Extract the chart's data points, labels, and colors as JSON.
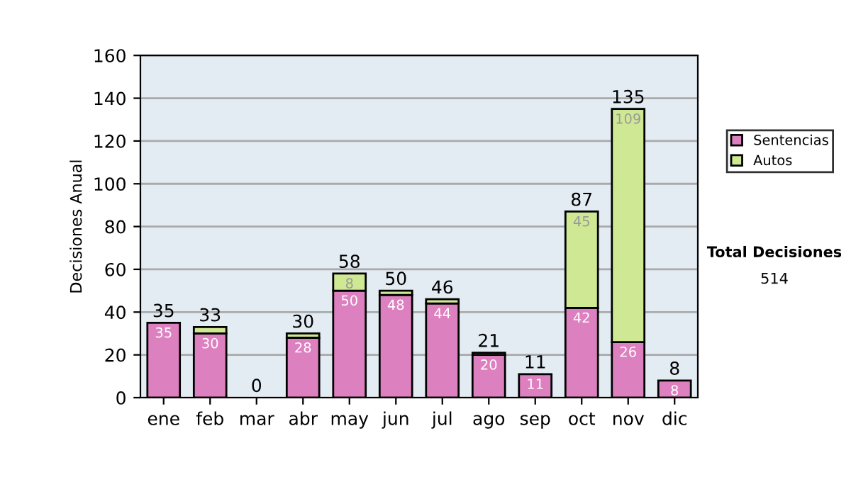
{
  "chart_data": {
    "type": "bar",
    "stacked": true,
    "categories": [
      "ene",
      "feb",
      "mar",
      "abr",
      "may",
      "jun",
      "jul",
      "ago",
      "sep",
      "oct",
      "nov",
      "dic"
    ],
    "ylabel": "Decisiones Anual",
    "series": [
      {
        "name": "Sentencias",
        "color": "#dd80bf",
        "values": [
          35,
          30,
          0,
          28,
          50,
          48,
          44,
          20,
          11,
          42,
          26,
          8
        ],
        "value_labels": [
          "35",
          "30",
          null,
          "28",
          "50",
          "48",
          "44",
          "20",
          "11",
          "42",
          "26",
          "8"
        ]
      },
      {
        "name": "Autos",
        "color": "#cfe893",
        "values": [
          0,
          3,
          0,
          2,
          8,
          2,
          2,
          1,
          0,
          45,
          109,
          0
        ],
        "value_labels": [
          null,
          null,
          null,
          null,
          "8",
          null,
          null,
          null,
          null,
          "45",
          "109",
          null
        ]
      }
    ],
    "totals": [
      "35",
      "33",
      "0",
      "30",
      "58",
      "50",
      "46",
      "21",
      "11",
      "87",
      "135",
      "8"
    ],
    "ylim": [
      0,
      160
    ],
    "yticks": [
      0,
      20,
      40,
      60,
      80,
      100,
      120,
      140,
      160
    ],
    "grid": "y",
    "legend": "right",
    "annotations": [
      "Total Decisiones",
      "514"
    ]
  }
}
